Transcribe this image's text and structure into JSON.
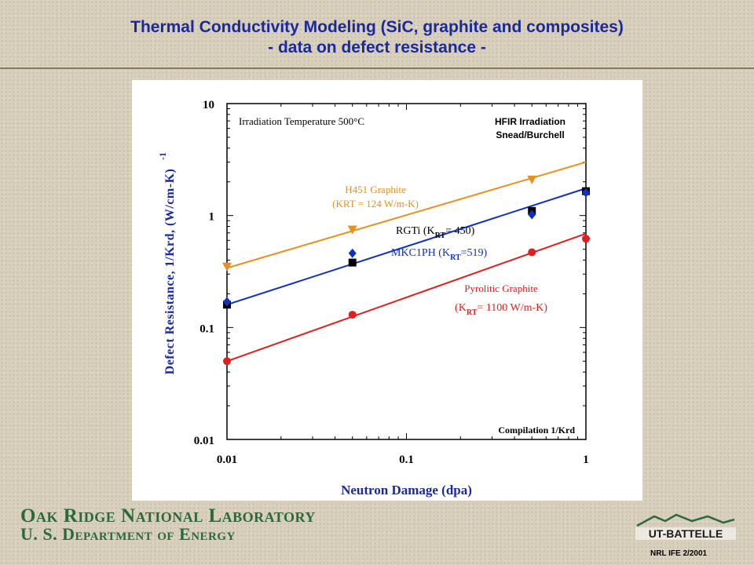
{
  "title_line1": "Thermal Conductivity Modeling (SiC, graphite and composites)",
  "title_line2": "- data on defect resistance -",
  "footer": {
    "lab_name": "Oak Ridge National Laboratory",
    "dept_name": "U. S. Department of Energy",
    "logo_text": "UT-BATTELLE",
    "footnote": "NRL IFE 2/2001"
  },
  "colors": {
    "title": "#1a2a9a",
    "axis_text": "#1a2a9a",
    "h451": "#e89020",
    "mkc": "#1030c0",
    "pyro": "#e02020",
    "rgti": "#000000"
  },
  "chart_data": {
    "type": "scatter",
    "xlabel": "Neutron Damage (dpa)",
    "ylabel": "Defect Resistance, 1/Krd, (W/cm-K)",
    "ylabel_exponent": "-1",
    "xscale": "log",
    "yscale": "log",
    "xlim": [
      0.01,
      1
    ],
    "ylim": [
      0.01,
      10
    ],
    "x_ticks": [
      {
        "value": 0.01,
        "label": "0.01"
      },
      {
        "value": 0.1,
        "label": "0.1"
      },
      {
        "value": 1,
        "label": "1"
      }
    ],
    "y_ticks": [
      {
        "value": 0.01,
        "label": "0.01"
      },
      {
        "value": 0.1,
        "label": "0.1"
      },
      {
        "value": 1,
        "label": "1"
      },
      {
        "value": 10,
        "label": "10"
      }
    ],
    "annotations": {
      "temperature": "Irradiation Temperature 500°C",
      "source_line1": "HFIR Irradiation",
      "source_line2": "Snead/Burchell",
      "compilation": "Compilation 1/Krd"
    },
    "series": [
      {
        "key": "h451",
        "label_line1": "H451 Graphite",
        "label_line2": "(KRT = 124 W/m-K)",
        "marker": "triangle-down",
        "x": [
          0.01,
          0.05,
          0.5
        ],
        "y": [
          0.35,
          0.75,
          2.1
        ],
        "fit": {
          "x": [
            0.01,
            1
          ],
          "y": [
            0.34,
            3.0
          ]
        }
      },
      {
        "key": "rgti",
        "label_pre": "RGTi (K",
        "label_sub": "RT",
        "label_post": "= 450)",
        "marker": "square",
        "x": [
          0.01,
          0.05,
          0.5,
          1
        ],
        "y": [
          0.16,
          0.38,
          1.1,
          1.65
        ]
      },
      {
        "key": "mkc",
        "label_pre": "MKC1PH (K",
        "label_sub": "RT",
        "label_post": "=519)",
        "marker": "diamond",
        "x": [
          0.01,
          0.05,
          0.5,
          1
        ],
        "y": [
          0.17,
          0.46,
          1.02,
          1.6
        ],
        "fit": {
          "x": [
            0.01,
            1
          ],
          "y": [
            0.16,
            1.75
          ]
        }
      },
      {
        "key": "pyro",
        "label_line1": "Pyrolitic Graphite",
        "label_pre": "(K",
        "label_sub": "RT",
        "label_post": "= 1100 W/m-K)",
        "marker": "circle",
        "x": [
          0.01,
          0.05,
          0.5,
          1
        ],
        "y": [
          0.05,
          0.13,
          0.47,
          0.62
        ],
        "fit": {
          "x": [
            0.01,
            1
          ],
          "y": [
            0.05,
            0.69
          ]
        }
      }
    ]
  }
}
